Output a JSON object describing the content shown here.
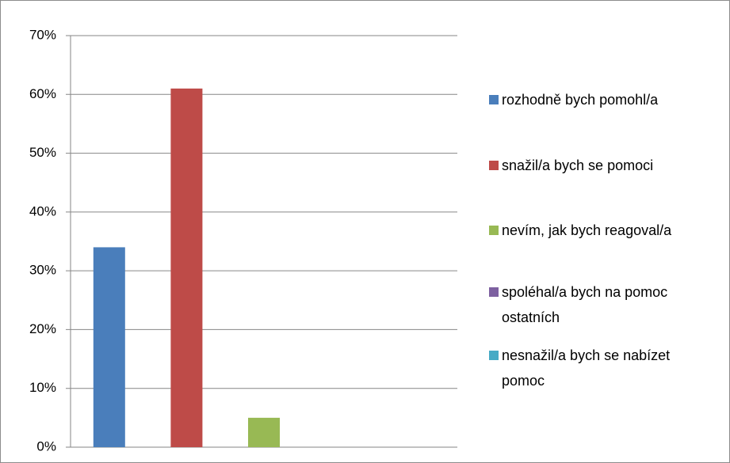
{
  "chart_data": {
    "type": "bar",
    "series": [
      {
        "name": "rozhodně bych pomohl/a",
        "color": "#4a7ebb",
        "values": [
          34
        ]
      },
      {
        "name": "snažil/a bych se pomoci",
        "color": "#be4b48",
        "values": [
          61
        ]
      },
      {
        "name": "nevím, jak bych reagoval/a",
        "color": "#98b954",
        "values": [
          5
        ]
      },
      {
        "name": "spoléhal/a bych na pomoc ostatních",
        "color": "#7d60a0",
        "values": [
          0
        ]
      },
      {
        "name": "nesnažil/a bych se nabízet pomoc",
        "color": "#46aac5",
        "values": [
          0
        ]
      }
    ],
    "ylim": [
      0,
      70
    ],
    "yticks": [
      {
        "value": 0,
        "label": "0%"
      },
      {
        "value": 10,
        "label": "10%"
      },
      {
        "value": 20,
        "label": "20%"
      },
      {
        "value": 30,
        "label": "30%"
      },
      {
        "value": 40,
        "label": "40%"
      },
      {
        "value": 50,
        "label": "50%"
      },
      {
        "value": 60,
        "label": "60%"
      },
      {
        "value": 70,
        "label": "70%"
      }
    ],
    "grid": true,
    "legend": "right"
  }
}
